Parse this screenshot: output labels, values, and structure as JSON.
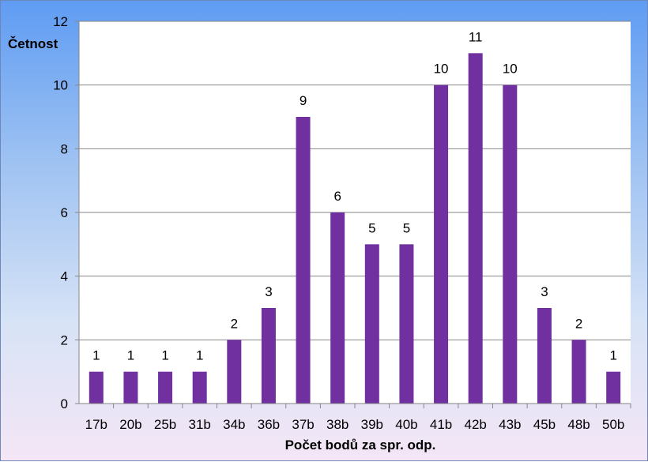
{
  "chart_data": {
    "type": "bar",
    "categories": [
      "17b",
      "20b",
      "25b",
      "31b",
      "34b",
      "36b",
      "37b",
      "38b",
      "39b",
      "40b",
      "41b",
      "42b",
      "43b",
      "45b",
      "48b",
      "50b"
    ],
    "values": [
      1,
      1,
      1,
      1,
      2,
      3,
      9,
      6,
      5,
      5,
      10,
      11,
      10,
      3,
      2,
      1
    ],
    "title": "",
    "xlabel": "Počet bodů za spr. odp.",
    "ylabel": "Četnost",
    "ylim": [
      0,
      12
    ],
    "yticks": [
      0,
      2,
      4,
      6,
      8,
      10,
      12
    ],
    "grid": true,
    "legend": "none",
    "bar_color": "#7030a0",
    "grid_color": "#868686",
    "plot_background": "#ffffff"
  }
}
